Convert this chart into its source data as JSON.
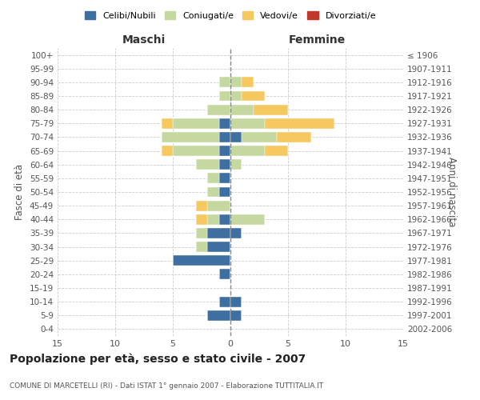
{
  "age_groups": [
    "100+",
    "95-99",
    "90-94",
    "85-89",
    "80-84",
    "75-79",
    "70-74",
    "65-69",
    "60-64",
    "55-59",
    "50-54",
    "45-49",
    "40-44",
    "35-39",
    "30-34",
    "25-29",
    "20-24",
    "15-19",
    "10-14",
    "5-9",
    "0-4"
  ],
  "birth_years": [
    "≤ 1906",
    "1907-1911",
    "1912-1916",
    "1917-1921",
    "1922-1926",
    "1927-1931",
    "1932-1936",
    "1937-1941",
    "1942-1946",
    "1947-1951",
    "1952-1956",
    "1957-1961",
    "1962-1966",
    "1967-1971",
    "1972-1976",
    "1977-1981",
    "1982-1986",
    "1987-1991",
    "1992-1996",
    "1997-2001",
    "2002-2006"
  ],
  "males": {
    "celibi": [
      0,
      0,
      0,
      0,
      0,
      1,
      1,
      1,
      1,
      1,
      1,
      0,
      1,
      2,
      2,
      5,
      1,
      0,
      1,
      2,
      0
    ],
    "coniugati": [
      0,
      0,
      1,
      1,
      2,
      4,
      5,
      4,
      2,
      1,
      1,
      2,
      1,
      1,
      1,
      0,
      0,
      0,
      0,
      0,
      0
    ],
    "vedovi": [
      0,
      0,
      0,
      0,
      0,
      1,
      0,
      1,
      0,
      0,
      0,
      1,
      1,
      0,
      0,
      0,
      0,
      0,
      0,
      0,
      0
    ],
    "divorziati": [
      0,
      0,
      0,
      0,
      0,
      0,
      0,
      0,
      0,
      0,
      0,
      0,
      0,
      0,
      0,
      0,
      0,
      0,
      0,
      0,
      0
    ]
  },
  "females": {
    "nubili": [
      0,
      0,
      0,
      0,
      0,
      0,
      1,
      0,
      0,
      0,
      0,
      0,
      0,
      1,
      0,
      0,
      0,
      0,
      1,
      1,
      0
    ],
    "coniugate": [
      0,
      0,
      1,
      1,
      2,
      3,
      3,
      3,
      1,
      0,
      0,
      0,
      3,
      0,
      0,
      0,
      0,
      0,
      0,
      0,
      0
    ],
    "vedove": [
      0,
      0,
      1,
      2,
      3,
      6,
      3,
      2,
      0,
      0,
      0,
      0,
      0,
      0,
      0,
      0,
      0,
      0,
      0,
      0,
      0
    ],
    "divorziate": [
      0,
      0,
      0,
      0,
      0,
      0,
      0,
      0,
      0,
      0,
      0,
      0,
      0,
      0,
      0,
      0,
      0,
      0,
      0,
      0,
      0
    ]
  },
  "colors": {
    "celibi_nubili": "#3d6fa0",
    "coniugati": "#c5d8a0",
    "vedovi": "#f5c860",
    "divorziati": "#c0392b"
  },
  "xlim": 15,
  "title": "Popolazione per età, sesso e stato civile - 2007",
  "subtitle": "COMUNE DI MARCETELLI (RI) - Dati ISTAT 1° gennaio 2007 - Elaborazione TUTTITALIA.IT",
  "ylabel_left": "Fasce di età",
  "ylabel_right": "Anni di nascita",
  "xlabel_left": "Maschi",
  "xlabel_right": "Femmine"
}
